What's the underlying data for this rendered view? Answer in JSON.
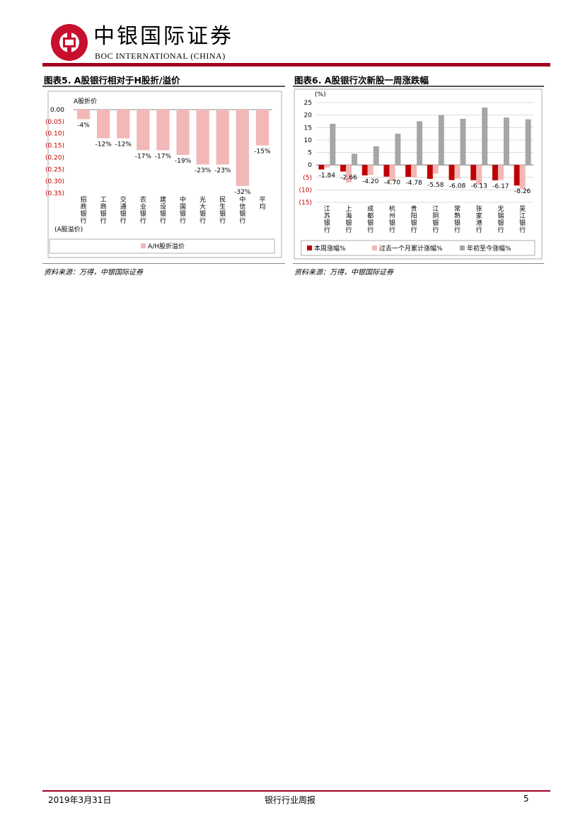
{
  "header": {
    "company_cn": "中银国际证券",
    "company_en": "BOC INTERNATIONAL (CHINA)"
  },
  "left_figure": {
    "title": "图表5. A股银行相对于H股折/溢价",
    "source": "资料来源：万得，中银国际证券"
  },
  "right_figure": {
    "title": "图表6. A股银行次新股一周涨跌幅",
    "source": "资料来源：万得，中银国际证券"
  },
  "footer": {
    "date": "2019年3月31日",
    "report_name": "银行行业周报",
    "page": "5"
  },
  "colors": {
    "brand_red": "#c8102e",
    "pink_bar": "#f2b8b8",
    "dark_red": "#c00000",
    "light_pink": "#f4b6b6",
    "gray_bar": "#a6a6a6",
    "negative_tick": "#c00000"
  },
  "chart_data": [
    {
      "type": "bar",
      "ylabel_top": "A股折价",
      "ylabel_bottom": "(A股溢价)",
      "ylim": [
        -0.35,
        0.0
      ],
      "yticks": [
        0.0,
        -0.05,
        -0.1,
        -0.15,
        -0.2,
        -0.25,
        -0.3,
        -0.35
      ],
      "ytick_labels": [
        "0.00",
        "(0.05)",
        "(0.10)",
        "(0.15)",
        "(0.20)",
        "(0.25)",
        "(0.30)",
        "(0.35)"
      ],
      "categories": [
        "招商银行",
        "工商银行",
        "交通银行",
        "农业银行",
        "建设银行",
        "中国银行",
        "光大银行",
        "民生银行",
        "中信银行",
        "平均"
      ],
      "values": [
        -0.04,
        -0.12,
        -0.12,
        -0.17,
        -0.17,
        -0.19,
        -0.23,
        -0.23,
        -0.32,
        -0.15
      ],
      "data_labels": [
        "-4%",
        "-12%",
        "-12%",
        "-17%",
        "-17%",
        "-19%",
        "-23%",
        "-23%",
        "-32%",
        "-15%"
      ],
      "legend": [
        "A/H股折溢价"
      ],
      "legend_position": "bottom",
      "grid": false
    },
    {
      "type": "bar",
      "ylabel": "(%)",
      "ylim": [
        -15,
        25
      ],
      "yticks": [
        25,
        20,
        15,
        10,
        5,
        0,
        -5,
        -10,
        -15
      ],
      "ytick_labels": [
        "25",
        "20",
        "15",
        "10",
        "5",
        "0",
        "(5)",
        "(10)",
        "(15)"
      ],
      "categories": [
        "江苏银行",
        "上海银行",
        "成都银行",
        "杭州银行",
        "贵阳银行",
        "江阴银行",
        "常熟银行",
        "张家港行",
        "无锡银行",
        "吴江银行"
      ],
      "series": [
        {
          "name": "本周涨幅%",
          "values": [
            -1.84,
            -2.66,
            -4.2,
            -4.7,
            -4.78,
            -5.58,
            -6.08,
            -6.13,
            -6.17,
            -8.26
          ]
        },
        {
          "name": "过去一个月累计涨幅%",
          "values": [
            -1.0,
            -7.0,
            -4.0,
            -6.5,
            -5.0,
            -3.5,
            -5.5,
            -8.0,
            -6.0,
            -9.5
          ]
        },
        {
          "name": "年初至今涨幅%",
          "values": [
            16.5,
            4.5,
            7.5,
            12.5,
            17.5,
            20.0,
            18.5,
            23.0,
            19.0,
            18.3
          ]
        }
      ],
      "data_labels": [
        "-1.84",
        "-2.66",
        "-4.20",
        "-4.70",
        "-4.78",
        "-5.58",
        "-6.08",
        "-6.13",
        "-6.17",
        "-8.26"
      ],
      "legend_position": "bottom",
      "grid": true
    }
  ]
}
